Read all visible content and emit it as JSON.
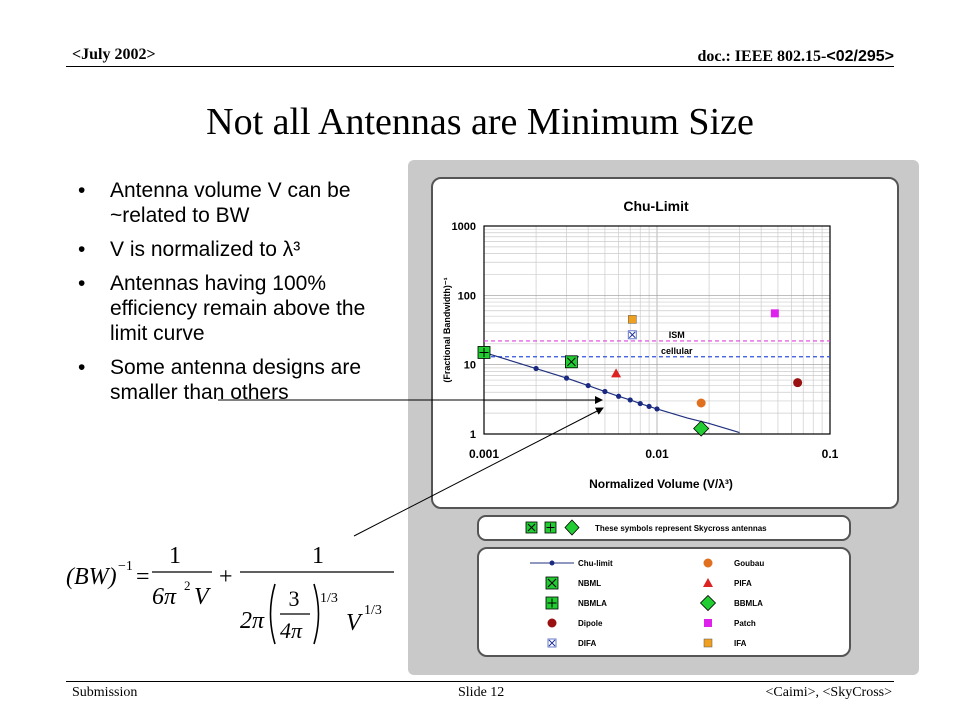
{
  "header": {
    "left": "<July 2002>",
    "right_prefix": "doc.: IEEE 802.15-",
    "right_code": "<02/295>"
  },
  "slide": {
    "title": "Not all Antennas are Minimum Size",
    "bullets": [
      "Antenna volume V can be ~related to BW",
      "V is normalized to λ³",
      "Antennas having 100% efficiency remain above the limit curve",
      "Some antenna designs are smaller than others"
    ]
  },
  "footer": {
    "left": "Submission",
    "center": "Slide 12",
    "right": "<Caimi>, <SkyCross>"
  },
  "chart_data": {
    "type": "scatter",
    "title": "Chu-Limit",
    "xlabel": "Normalized Volume (V/λ³)",
    "ylabel": "(Fractional Bandwidth)⁻¹",
    "xscale": "log",
    "yscale": "log",
    "xlim": [
      0.001,
      0.1
    ],
    "ylim": [
      1,
      1000
    ],
    "xticks": [
      "0.001",
      "0.01",
      "0.1"
    ],
    "yticks": [
      "1",
      "10",
      "100",
      "1000"
    ],
    "grid": true,
    "reference_lines": [
      {
        "label": "ISM",
        "y": 22,
        "color": "#e040e0"
      },
      {
        "label": "cellular",
        "y": 13,
        "color": "#3050e0"
      }
    ],
    "chu_limit": {
      "x": [
        0.001,
        0.002,
        0.003,
        0.004,
        0.005,
        0.006,
        0.007,
        0.008,
        0.009,
        0.01,
        0.015,
        0.02,
        0.03
      ],
      "y": [
        15,
        8.8,
        6.4,
        5.0,
        4.1,
        3.5,
        3.1,
        2.75,
        2.5,
        2.3,
        1.7,
        1.42,
        1.05
      ]
    },
    "markers": [
      {
        "x": [
          0.002,
          0.003,
          0.004,
          0.005,
          0.006,
          0.007,
          0.008,
          0.009,
          0.01
        ]
      },
      {
        "name": "NBMLA",
        "x": 0.001,
        "y": 15,
        "color": "#22cc33"
      },
      {
        "name": "NBML",
        "x": 0.0032,
        "y": 11,
        "color": "#22cc33"
      },
      {
        "name": "PIFA",
        "x": 0.0058,
        "y": 7.5,
        "color": "#dd2222"
      },
      {
        "name": "IFA",
        "x": 0.0072,
        "y": 45,
        "color": "#f0a020"
      },
      {
        "name": "DIFA",
        "x": 0.0072,
        "y": 27,
        "color": "#6677cc"
      },
      {
        "name": "Goubau",
        "x": 0.018,
        "y": 2.8,
        "color": "#e07020"
      },
      {
        "name": "BBMLA",
        "x": 0.018,
        "y": 1.2,
        "color": "#22cc33"
      },
      {
        "name": "Patch",
        "x": 0.048,
        "y": 55,
        "color": "#dd22ee"
      },
      {
        "name": "Dipole",
        "x": 0.065,
        "y": 5.5,
        "color": "#991111"
      }
    ],
    "note": "These symbols represent Skycross antennas",
    "legend": [
      {
        "label": "Chu-limit",
        "symbol": "line-dot"
      },
      {
        "label": "NBML",
        "symbol": "x-box"
      },
      {
        "label": "NBMLA",
        "symbol": "plus-box"
      },
      {
        "label": "Dipole",
        "symbol": "dark-dot"
      },
      {
        "label": "DIFA",
        "symbol": "small-x-box"
      },
      {
        "label": "Goubau",
        "symbol": "orange-dot"
      },
      {
        "label": "PIFA",
        "symbol": "triangle"
      },
      {
        "label": "BBMLA",
        "symbol": "diamond"
      },
      {
        "label": "Patch",
        "symbol": "magenta-square"
      },
      {
        "label": "IFA",
        "symbol": "orange-square"
      }
    ]
  },
  "formula": {
    "lhs": "(BW)",
    "exp_lhs": "−1",
    "equals": "=",
    "one_a": "1",
    "den_a": "6π",
    "sq": "2",
    "den_a_v": "V",
    "plus": "+",
    "one_b": "1",
    "two_pi": "2π",
    "three": "3",
    "four_pi": "4π",
    "exp_third": "1/3",
    "v": "V",
    "exp_v": "1/3"
  }
}
